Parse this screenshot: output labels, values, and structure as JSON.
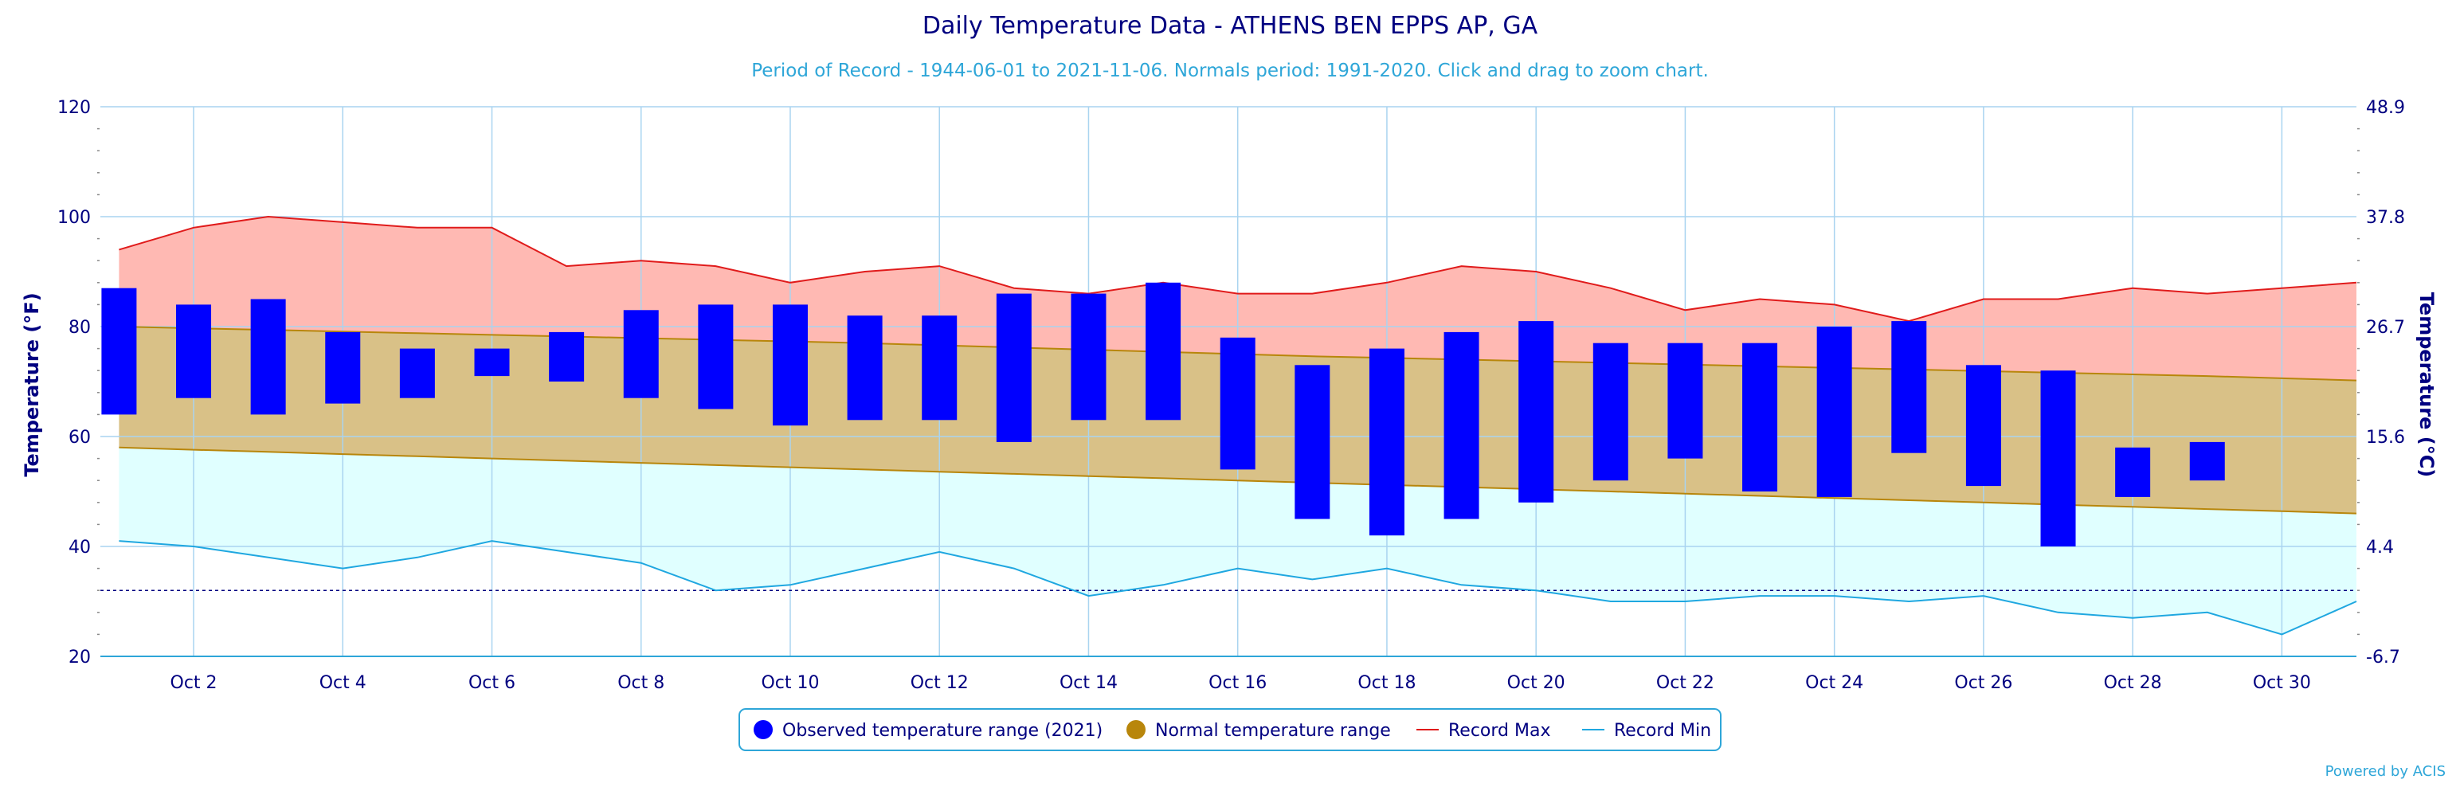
{
  "title": "Daily Temperature Data - ATHENS BEN EPPS AP, GA",
  "subtitle": "Period of Record - 1944-06-01 to 2021-11-06. Normals period: 1991-2020. Click and drag to zoom chart.",
  "credit": "Powered by ACIS",
  "colors": {
    "title": "#000080",
    "subtitle": "#2ea6d8",
    "observed": "#0000ff",
    "normal_fill": "#d9c187",
    "normal_line": "#b8860b",
    "record_max_fill": "#ffb9b3",
    "record_max_line": "#e01b1b",
    "record_min_fill": "#e0ffff",
    "record_min_line": "#1fa7e0",
    "grid": "#a9d4f0",
    "freezing_line": "#000080",
    "axis_text": "#000080"
  },
  "chart_data": {
    "type": "range-bar",
    "title": "Daily Temperature Data - ATHENS BEN EPPS AP, GA",
    "subtitle": "Period of Record - 1944-06-01 to 2021-11-06. Normals period: 1991-2020. Click and drag to zoom chart.",
    "ylabel": "Temperature (°F)",
    "ylabel_right": "Temperature (°C)",
    "ylim": [
      20,
      120
    ],
    "yticks": [
      "20",
      "40",
      "60",
      "80",
      "100",
      "120"
    ],
    "yticks_right": [
      "-6.7",
      "4.4",
      "15.6",
      "26.7",
      "37.8",
      "48.9"
    ],
    "xlim": [
      1,
      31
    ],
    "xticks": [
      2,
      4,
      6,
      8,
      10,
      12,
      14,
      16,
      18,
      20,
      22,
      24,
      26,
      28,
      30
    ],
    "xtick_labels": [
      "Oct 2",
      "Oct 4",
      "Oct 6",
      "Oct 8",
      "Oct 10",
      "Oct 12",
      "Oct 14",
      "Oct 16",
      "Oct 18",
      "Oct 20",
      "Oct 22",
      "Oct 24",
      "Oct 26",
      "Oct 28",
      "Oct 30"
    ],
    "freezing_line": 32,
    "grid": true,
    "legend_position": "bottom-center",
    "legend": [
      "Observed temperature range (2021)",
      "Normal temperature range",
      "Record Max",
      "Record Min"
    ],
    "days": [
      1,
      2,
      3,
      4,
      5,
      6,
      7,
      8,
      9,
      10,
      11,
      12,
      13,
      14,
      15,
      16,
      17,
      18,
      19,
      20,
      21,
      22,
      23,
      24,
      25,
      26,
      27,
      28,
      29,
      30,
      31
    ],
    "observed_days": [
      1,
      2,
      3,
      4,
      5,
      6,
      7,
      8,
      9,
      10,
      11,
      12,
      13,
      14,
      15,
      16,
      17,
      18,
      19,
      20,
      21,
      22,
      23,
      24,
      25,
      26,
      27,
      28,
      29
    ],
    "observed_high": [
      87,
      84,
      85,
      79,
      76,
      76,
      79,
      83,
      84,
      84,
      82,
      82,
      86,
      86,
      88,
      78,
      73,
      76,
      79,
      81,
      77,
      77,
      77,
      80,
      81,
      73,
      72,
      58,
      59
    ],
    "observed_low": [
      64,
      67,
      64,
      66,
      67,
      71,
      70,
      67,
      65,
      62,
      63,
      63,
      59,
      63,
      63,
      54,
      45,
      42,
      45,
      48,
      52,
      56,
      50,
      49,
      57,
      51,
      40,
      49,
      52
    ],
    "normal_high": [
      80,
      79.7,
      79.4,
      79.1,
      78.8,
      78.5,
      78.2,
      77.9,
      77.6,
      77.3,
      77,
      76.6,
      76.2,
      75.8,
      75.4,
      75,
      74.6,
      74.3,
      74,
      73.7,
      73.4,
      73.1,
      72.8,
      72.5,
      72.2,
      71.9,
      71.6,
      71.3,
      71,
      70.6,
      70.2
    ],
    "normal_low": [
      58,
      57.6,
      57.2,
      56.8,
      56.4,
      56,
      55.6,
      55.2,
      54.8,
      54.4,
      54,
      53.6,
      53.2,
      52.8,
      52.4,
      52,
      51.6,
      51.2,
      50.8,
      50.4,
      50,
      49.6,
      49.2,
      48.8,
      48.4,
      48,
      47.6,
      47.2,
      46.8,
      46.4,
      46
    ],
    "record_max": [
      94,
      98,
      100,
      99,
      98,
      98,
      91,
      92,
      91,
      88,
      90,
      91,
      87,
      86,
      88,
      86,
      86,
      88,
      91,
      90,
      87,
      83,
      85,
      84,
      81,
      85,
      85,
      87,
      86,
      87,
      88
    ],
    "record_min": [
      41,
      40,
      38,
      36,
      38,
      41,
      39,
      37,
      32,
      33,
      36,
      39,
      36,
      31,
      33,
      36,
      34,
      36,
      33,
      32,
      30,
      30,
      31,
      31,
      30,
      31,
      28,
      27,
      28,
      24,
      30
    ]
  }
}
